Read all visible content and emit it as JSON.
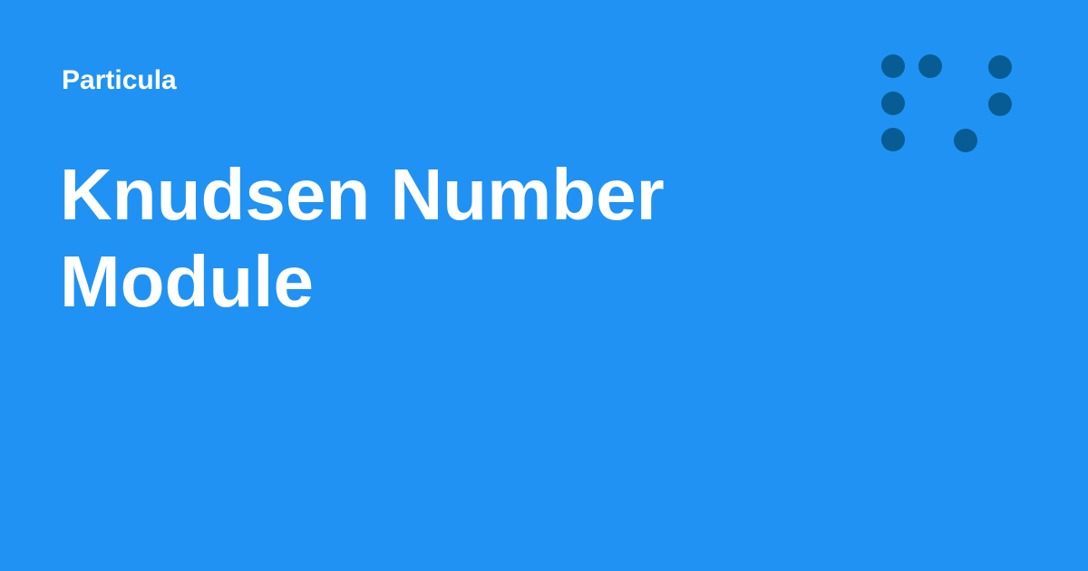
{
  "header": {
    "site_name": "Particula"
  },
  "title": {
    "line1": "Knudsen Number",
    "line2": "Module"
  },
  "logo": {
    "icon": "dot-grid-logo-icon",
    "dot_color": "#085c94"
  },
  "colors": {
    "background": "#2092f3",
    "text": "#ffffff",
    "logo_dots": "#085c94"
  }
}
